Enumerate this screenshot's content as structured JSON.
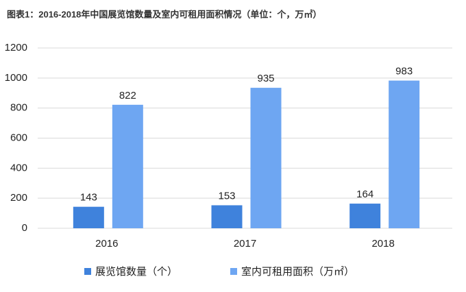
{
  "chart_data": {
    "type": "bar",
    "title": "图表1：2016-2018年中国展览馆数量及室内可租用面积情况（单位：个，万㎡）",
    "categories": [
      "2016",
      "2017",
      "2018"
    ],
    "series": [
      {
        "name": "展览馆数量（个）",
        "color": "#3f82dc",
        "values": [
          143,
          153,
          164
        ]
      },
      {
        "name": "室内可租用面积（万㎡）",
        "color": "#6ea6f2",
        "values": [
          822,
          935,
          983
        ]
      }
    ],
    "ylim": [
      0,
      1200
    ],
    "yticks": [
      0,
      200,
      400,
      600,
      800,
      1000,
      1200
    ],
    "grid": true,
    "legend": "bottom"
  }
}
